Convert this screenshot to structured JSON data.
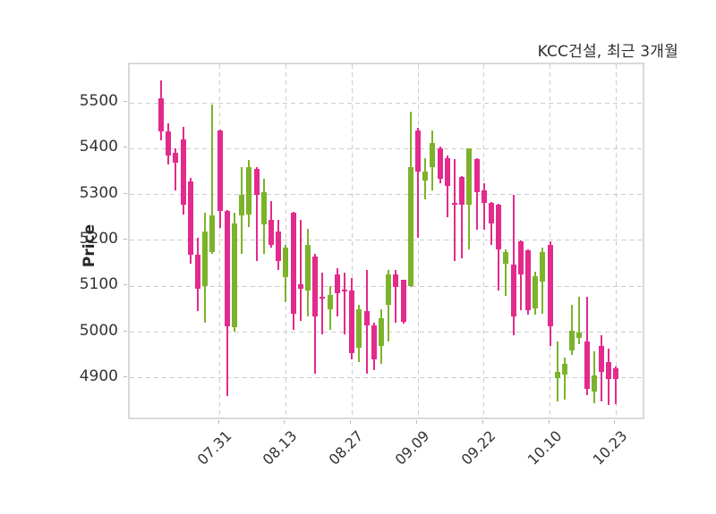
{
  "header": {
    "title": "KCC건설, 최근 3개월"
  },
  "chart_data": {
    "type": "candlestick",
    "title": "KCC건설, 최근 3개월",
    "ylabel": "Price",
    "y_ticks": [
      5500,
      5400,
      5300,
      5200,
      5100,
      5000,
      4900
    ],
    "ylim": [
      4806,
      5584
    ],
    "x_tick_labels": [
      "07.31",
      "08.13",
      "08.27",
      "09.09",
      "09.22",
      "10.10",
      "10.23"
    ],
    "x_tick_candle_index": [
      8,
      17,
      26,
      35,
      44,
      53,
      62
    ],
    "grid": "dashed",
    "legend": "none",
    "colors": {
      "up": "#e32a8d",
      "down": "#7cb32b",
      "grid": "#cccccc",
      "frame": "#d9d9d9",
      "text": "#333333"
    },
    "candles_format": [
      "open",
      "high",
      "low",
      "close"
    ],
    "candles": [
      [
        5437,
        5549,
        5418,
        5510
      ],
      [
        5385,
        5455,
        5365,
        5437
      ],
      [
        5369,
        5400,
        5310,
        5390
      ],
      [
        5278,
        5447,
        5256,
        5420
      ],
      [
        5168,
        5337,
        5149,
        5329
      ],
      [
        5095,
        5205,
        5045,
        5168
      ],
      [
        5220,
        5260,
        5020,
        5100
      ],
      [
        5255,
        5497,
        5170,
        5175
      ],
      [
        5265,
        5442,
        5228,
        5440
      ],
      [
        5012,
        5267,
        4860,
        5265
      ],
      [
        5237,
        5260,
        5000,
        5010
      ],
      [
        5300,
        5360,
        5170,
        5255
      ],
      [
        5360,
        5375,
        5230,
        5257
      ],
      [
        5300,
        5360,
        5155,
        5355
      ],
      [
        5305,
        5335,
        5170,
        5235
      ],
      [
        5190,
        5285,
        5185,
        5245
      ],
      [
        5155,
        5245,
        5135,
        5220
      ],
      [
        5185,
        5190,
        5065,
        5120
      ],
      [
        5040,
        5262,
        5005,
        5260
      ],
      [
        5095,
        5245,
        5025,
        5105
      ],
      [
        5190,
        5225,
        5035,
        5090
      ],
      [
        5035,
        5170,
        4910,
        5165
      ],
      [
        5073,
        5130,
        4995,
        5077
      ],
      [
        5080,
        5100,
        5005,
        5050
      ],
      [
        5085,
        5140,
        5035,
        5125
      ],
      [
        5088,
        5130,
        4995,
        5092
      ],
      [
        4955,
        5118,
        4940,
        5090
      ],
      [
        5050,
        5060,
        4935,
        4965
      ],
      [
        5015,
        5135,
        4910,
        5045
      ],
      [
        4940,
        5020,
        4918,
        5015
      ],
      [
        5030,
        5050,
        4930,
        4970
      ],
      [
        5125,
        5135,
        4980,
        5060
      ],
      [
        5098,
        5135,
        5020,
        5125
      ],
      [
        5023,
        5115,
        5018,
        5114
      ],
      [
        5360,
        5480,
        5098,
        5100
      ],
      [
        5350,
        5445,
        5205,
        5440
      ],
      [
        5350,
        5380,
        5290,
        5330
      ],
      [
        5413,
        5440,
        5310,
        5360
      ],
      [
        5335,
        5405,
        5325,
        5400
      ],
      [
        5318,
        5385,
        5250,
        5380
      ],
      [
        5278,
        5378,
        5155,
        5282
      ],
      [
        5278,
        5340,
        5160,
        5338
      ],
      [
        5400,
        5400,
        5180,
        5278
      ],
      [
        5305,
        5380,
        5223,
        5378
      ],
      [
        5282,
        5325,
        5223,
        5310
      ],
      [
        5236,
        5284,
        5190,
        5282
      ],
      [
        5180,
        5280,
        5090,
        5278
      ],
      [
        5175,
        5180,
        5078,
        5150
      ],
      [
        5035,
        5300,
        4993,
        5148
      ],
      [
        5126,
        5200,
        5048,
        5198
      ],
      [
        5048,
        5180,
        5038,
        5178
      ],
      [
        5122,
        5132,
        5038,
        5052
      ],
      [
        5175,
        5185,
        5040,
        5110
      ],
      [
        5013,
        5197,
        4970,
        5190
      ],
      [
        4913,
        4980,
        4848,
        4899
      ],
      [
        4931,
        4944,
        4853,
        4908
      ],
      [
        5002,
        5060,
        4950,
        4960
      ],
      [
        5000,
        5078,
        4973,
        4988
      ],
      [
        4876,
        5078,
        4863,
        4979
      ],
      [
        4905,
        4958,
        4845,
        4870
      ],
      [
        4914,
        4994,
        4848,
        4970
      ],
      [
        4898,
        4964,
        4842,
        4934
      ],
      [
        4898,
        4925,
        4843,
        4922
      ]
    ]
  }
}
